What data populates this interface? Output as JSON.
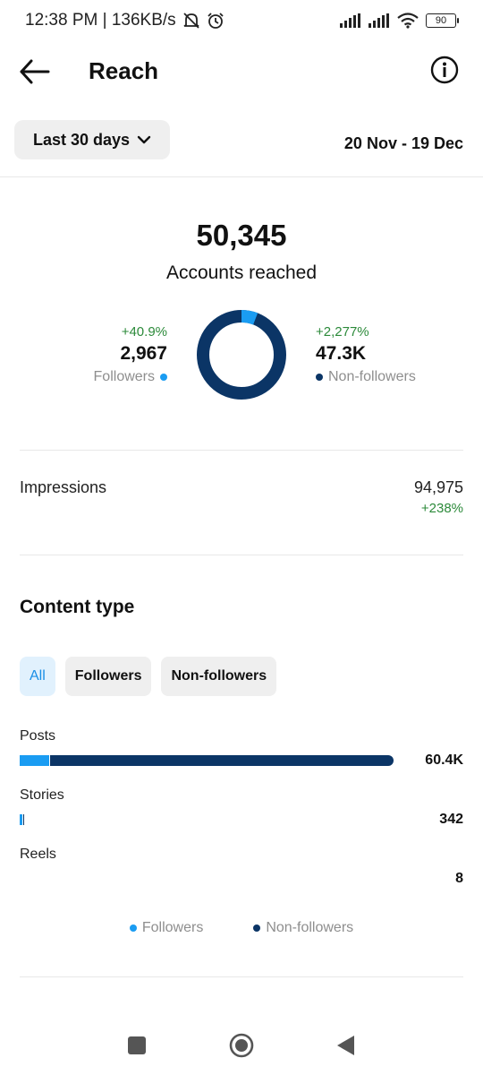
{
  "status_bar": {
    "text": "12:38 PM | 136KB/s",
    "battery": "90"
  },
  "header": {
    "title": "Reach"
  },
  "filter": {
    "range_label": "Last 30 days",
    "date_range": "20 Nov - 19 Dec"
  },
  "reach": {
    "total": "50,345",
    "total_label": "Accounts reached",
    "followers": {
      "change": "+40.9%",
      "value": "2,967",
      "label": "Followers",
      "color": "#1a9cf2"
    },
    "non_followers": {
      "change": "+2,277%",
      "value": "47.3K",
      "label": "Non-followers",
      "color": "#0b3566"
    },
    "followers_share": 0.059
  },
  "impressions": {
    "label": "Impressions",
    "value": "94,975",
    "change": "+238%"
  },
  "content_type": {
    "title": "Content type",
    "tabs": [
      {
        "label": "All",
        "active": true
      },
      {
        "label": "Followers",
        "active": false
      },
      {
        "label": "Non-followers",
        "active": false
      }
    ],
    "rows": [
      {
        "label": "Posts",
        "value": "60.4K",
        "followers_fraction": 0.078,
        "bar_fraction": 1.0
      },
      {
        "label": "Stories",
        "value": "342",
        "followers_fraction": 0.6,
        "bar_fraction": 0.012
      },
      {
        "label": "Reels",
        "value": "8",
        "followers_fraction": 0.0,
        "bar_fraction": 0.0
      }
    ],
    "legend": {
      "followers": "Followers",
      "non_followers": "Non-followers"
    }
  },
  "colors": {
    "followers": "#1a9cf2",
    "non_followers": "#0b3566",
    "positive": "#2c8a3a"
  }
}
